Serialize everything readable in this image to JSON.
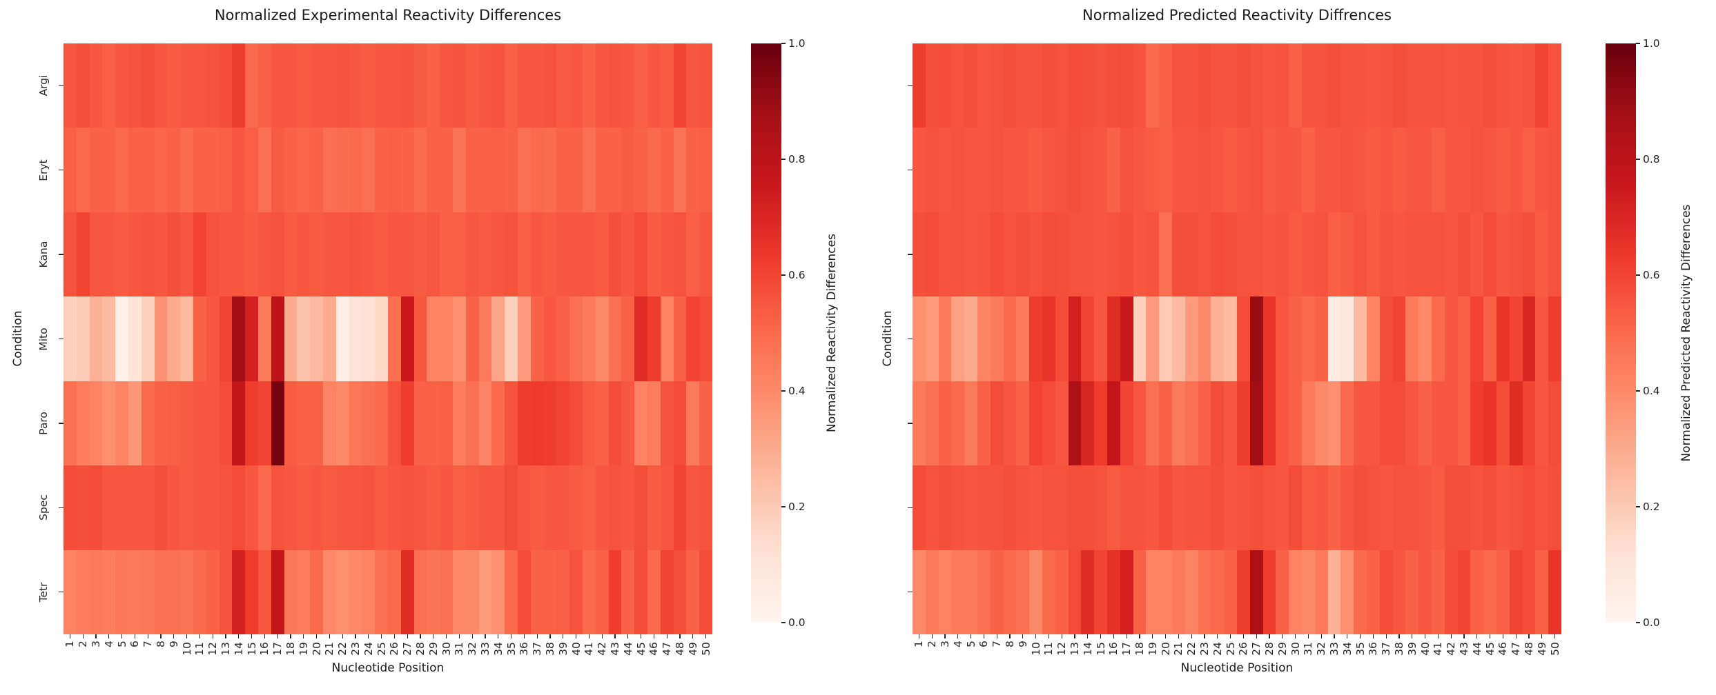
{
  "figure": {
    "background": "#ffffff",
    "text_color": "#1a1a1a"
  },
  "colors": {
    "reds_colormap_stops": [
      "#fff5f0",
      "#fee0d2",
      "#fcbba1",
      "#fc9272",
      "#fb6a4a",
      "#ef3b2c",
      "#cb181d",
      "#a50f15",
      "#67000d"
    ]
  },
  "chart_data": [
    {
      "type": "heatmap",
      "title": "Normalized Experimental Reactivity Differences",
      "xlabel": "Nucleotide Position",
      "ylabel": "Condition",
      "colorbar_label": "Normalized Reactivity Differences",
      "colorbar_ticks": [
        "1.0",
        "0.8",
        "0.6",
        "0.4",
        "0.2",
        "0.0"
      ],
      "vmin": 0,
      "vmax": 1,
      "colormap": "Reds",
      "y_ticklabels": [
        "Argi",
        "Eryt",
        "Kana",
        "Mito",
        "Paro",
        "Spec",
        "Tetr"
      ],
      "show_y_ticklabels": true,
      "x_ticklabels": [
        "1",
        "2",
        "3",
        "4",
        "5",
        "6",
        "7",
        "8",
        "9",
        "10",
        "11",
        "12",
        "13",
        "14",
        "15",
        "16",
        "17",
        "18",
        "19",
        "20",
        "21",
        "22",
        "23",
        "24",
        "25",
        "26",
        "27",
        "28",
        "29",
        "30",
        "31",
        "32",
        "33",
        "34",
        "35",
        "36",
        "37",
        "38",
        "39",
        "40",
        "41",
        "42",
        "43",
        "44",
        "45",
        "46",
        "47",
        "48",
        "49",
        "50"
      ],
      "values": [
        [
          0.55,
          0.57,
          0.55,
          0.53,
          0.55,
          0.56,
          0.57,
          0.55,
          0.54,
          0.55,
          0.55,
          0.56,
          0.58,
          0.62,
          0.5,
          0.53,
          0.55,
          0.55,
          0.54,
          0.55,
          0.55,
          0.56,
          0.55,
          0.54,
          0.55,
          0.55,
          0.56,
          0.54,
          0.52,
          0.55,
          0.56,
          0.54,
          0.55,
          0.56,
          0.53,
          0.55,
          0.55,
          0.56,
          0.54,
          0.55,
          0.52,
          0.55,
          0.56,
          0.55,
          0.53,
          0.55,
          0.54,
          0.6,
          0.55,
          0.56
        ],
        [
          0.53,
          0.5,
          0.52,
          0.52,
          0.5,
          0.52,
          0.52,
          0.51,
          0.52,
          0.49,
          0.52,
          0.52,
          0.53,
          0.55,
          0.53,
          0.48,
          0.54,
          0.52,
          0.51,
          0.52,
          0.48,
          0.49,
          0.5,
          0.48,
          0.52,
          0.53,
          0.52,
          0.49,
          0.52,
          0.52,
          0.47,
          0.52,
          0.52,
          0.53,
          0.52,
          0.48,
          0.5,
          0.49,
          0.52,
          0.52,
          0.48,
          0.52,
          0.52,
          0.54,
          0.52,
          0.5,
          0.52,
          0.47,
          0.52,
          0.53
        ],
        [
          0.56,
          0.6,
          0.55,
          0.55,
          0.54,
          0.55,
          0.56,
          0.55,
          0.57,
          0.55,
          0.6,
          0.56,
          0.55,
          0.55,
          0.54,
          0.55,
          0.56,
          0.54,
          0.55,
          0.54,
          0.55,
          0.55,
          0.56,
          0.55,
          0.54,
          0.55,
          0.55,
          0.54,
          0.55,
          0.52,
          0.53,
          0.55,
          0.54,
          0.55,
          0.56,
          0.53,
          0.55,
          0.54,
          0.55,
          0.55,
          0.55,
          0.54,
          0.57,
          0.55,
          0.58,
          0.54,
          0.55,
          0.56,
          0.53,
          0.55
        ],
        [
          0.18,
          0.2,
          0.28,
          0.25,
          0.03,
          0.1,
          0.18,
          0.38,
          0.3,
          0.25,
          0.52,
          0.55,
          0.6,
          0.88,
          0.72,
          0.45,
          0.8,
          0.3,
          0.22,
          0.25,
          0.3,
          0.04,
          0.1,
          0.12,
          0.15,
          0.48,
          0.75,
          0.55,
          0.42,
          0.42,
          0.38,
          0.52,
          0.45,
          0.32,
          0.18,
          0.35,
          0.52,
          0.55,
          0.53,
          0.48,
          0.45,
          0.4,
          0.48,
          0.52,
          0.68,
          0.62,
          0.42,
          0.52,
          0.6,
          0.58
        ],
        [
          0.48,
          0.44,
          0.42,
          0.38,
          0.42,
          0.36,
          0.5,
          0.52,
          0.53,
          0.54,
          0.55,
          0.55,
          0.58,
          0.78,
          0.62,
          0.6,
          0.97,
          0.54,
          0.52,
          0.52,
          0.42,
          0.4,
          0.46,
          0.48,
          0.5,
          0.56,
          0.62,
          0.52,
          0.52,
          0.53,
          0.44,
          0.48,
          0.42,
          0.5,
          0.56,
          0.62,
          0.63,
          0.62,
          0.6,
          0.58,
          0.54,
          0.52,
          0.58,
          0.55,
          0.42,
          0.44,
          0.56,
          0.58,
          0.45,
          0.52
        ],
        [
          0.58,
          0.57,
          0.58,
          0.55,
          0.55,
          0.55,
          0.55,
          0.57,
          0.55,
          0.54,
          0.55,
          0.55,
          0.56,
          0.58,
          0.55,
          0.5,
          0.56,
          0.55,
          0.54,
          0.55,
          0.54,
          0.55,
          0.55,
          0.56,
          0.54,
          0.55,
          0.56,
          0.55,
          0.54,
          0.55,
          0.53,
          0.54,
          0.55,
          0.55,
          0.58,
          0.55,
          0.54,
          0.55,
          0.55,
          0.54,
          0.53,
          0.55,
          0.56,
          0.55,
          0.57,
          0.54,
          0.55,
          0.6,
          0.55,
          0.56
        ],
        [
          0.42,
          0.44,
          0.45,
          0.44,
          0.46,
          0.45,
          0.46,
          0.48,
          0.48,
          0.47,
          0.5,
          0.52,
          0.56,
          0.72,
          0.62,
          0.55,
          0.78,
          0.46,
          0.44,
          0.5,
          0.4,
          0.38,
          0.4,
          0.42,
          0.48,
          0.5,
          0.68,
          0.48,
          0.47,
          0.48,
          0.4,
          0.4,
          0.35,
          0.38,
          0.5,
          0.58,
          0.52,
          0.52,
          0.53,
          0.56,
          0.5,
          0.52,
          0.62,
          0.52,
          0.58,
          0.5,
          0.6,
          0.57,
          0.52,
          0.58
        ]
      ]
    },
    {
      "type": "heatmap",
      "title": "Normalized Predicted Reactivity Diffrences",
      "xlabel": "Nucleotide Position",
      "ylabel": "Condition",
      "colorbar_label": "Normalized Predicted Reactivity Differences",
      "colorbar_ticks": [
        "1.0",
        "0.8",
        "0.6",
        "0.4",
        "0.2",
        "0.0"
      ],
      "vmin": 0,
      "vmax": 1,
      "colormap": "Reds",
      "y_ticklabels": [],
      "show_y_ticklabels": false,
      "x_ticklabels": [
        "1",
        "2",
        "3",
        "4",
        "5",
        "6",
        "7",
        "8",
        "9",
        "10",
        "11",
        "12",
        "13",
        "14",
        "15",
        "16",
        "17",
        "18",
        "19",
        "20",
        "21",
        "22",
        "23",
        "24",
        "25",
        "26",
        "27",
        "28",
        "29",
        "30",
        "31",
        "32",
        "33",
        "34",
        "35",
        "36",
        "37",
        "38",
        "39",
        "40",
        "41",
        "42",
        "43",
        "44",
        "45",
        "46",
        "47",
        "48",
        "49",
        "50"
      ],
      "values": [
        [
          0.62,
          0.57,
          0.58,
          0.56,
          0.57,
          0.55,
          0.56,
          0.57,
          0.56,
          0.56,
          0.57,
          0.56,
          0.58,
          0.57,
          0.56,
          0.57,
          0.58,
          0.56,
          0.5,
          0.52,
          0.56,
          0.56,
          0.57,
          0.56,
          0.56,
          0.57,
          0.56,
          0.55,
          0.56,
          0.53,
          0.56,
          0.56,
          0.57,
          0.56,
          0.56,
          0.55,
          0.56,
          0.57,
          0.56,
          0.56,
          0.56,
          0.55,
          0.56,
          0.56,
          0.57,
          0.56,
          0.55,
          0.56,
          0.6,
          0.56
        ],
        [
          0.55,
          0.56,
          0.55,
          0.56,
          0.55,
          0.55,
          0.56,
          0.55,
          0.55,
          0.54,
          0.55,
          0.56,
          0.57,
          0.56,
          0.55,
          0.52,
          0.56,
          0.55,
          0.54,
          0.53,
          0.55,
          0.55,
          0.56,
          0.55,
          0.54,
          0.55,
          0.56,
          0.54,
          0.55,
          0.55,
          0.52,
          0.55,
          0.55,
          0.56,
          0.55,
          0.54,
          0.55,
          0.54,
          0.55,
          0.55,
          0.53,
          0.55,
          0.55,
          0.56,
          0.55,
          0.54,
          0.55,
          0.53,
          0.55,
          0.56
        ],
        [
          0.57,
          0.58,
          0.56,
          0.56,
          0.55,
          0.56,
          0.58,
          0.56,
          0.57,
          0.56,
          0.58,
          0.57,
          0.56,
          0.56,
          0.55,
          0.56,
          0.57,
          0.55,
          0.56,
          0.48,
          0.57,
          0.57,
          0.56,
          0.58,
          0.57,
          0.56,
          0.56,
          0.55,
          0.56,
          0.54,
          0.55,
          0.56,
          0.53,
          0.54,
          0.56,
          0.54,
          0.56,
          0.55,
          0.56,
          0.56,
          0.56,
          0.55,
          0.57,
          0.55,
          0.58,
          0.55,
          0.56,
          0.57,
          0.54,
          0.56
        ],
        [
          0.38,
          0.35,
          0.45,
          0.33,
          0.3,
          0.42,
          0.45,
          0.5,
          0.45,
          0.62,
          0.65,
          0.58,
          0.72,
          0.6,
          0.55,
          0.68,
          0.75,
          0.18,
          0.35,
          0.2,
          0.25,
          0.35,
          0.4,
          0.28,
          0.25,
          0.58,
          0.9,
          0.65,
          0.55,
          0.52,
          0.5,
          0.52,
          0.06,
          0.08,
          0.25,
          0.42,
          0.58,
          0.6,
          0.45,
          0.4,
          0.5,
          0.55,
          0.52,
          0.6,
          0.52,
          0.65,
          0.6,
          0.7,
          0.55,
          0.62
        ],
        [
          0.45,
          0.48,
          0.52,
          0.5,
          0.45,
          0.52,
          0.58,
          0.55,
          0.52,
          0.6,
          0.58,
          0.55,
          0.85,
          0.7,
          0.62,
          0.78,
          0.6,
          0.55,
          0.48,
          0.52,
          0.45,
          0.48,
          0.52,
          0.58,
          0.55,
          0.62,
          0.88,
          0.65,
          0.55,
          0.52,
          0.45,
          0.4,
          0.38,
          0.5,
          0.55,
          0.55,
          0.58,
          0.58,
          0.55,
          0.52,
          0.55,
          0.55,
          0.52,
          0.62,
          0.65,
          0.58,
          0.68,
          0.6,
          0.55,
          0.58
        ],
        [
          0.58,
          0.56,
          0.57,
          0.56,
          0.55,
          0.56,
          0.56,
          0.57,
          0.56,
          0.55,
          0.56,
          0.56,
          0.57,
          0.57,
          0.56,
          0.54,
          0.56,
          0.56,
          0.55,
          0.58,
          0.55,
          0.56,
          0.56,
          0.57,
          0.55,
          0.56,
          0.57,
          0.56,
          0.55,
          0.58,
          0.54,
          0.55,
          0.52,
          0.55,
          0.57,
          0.56,
          0.55,
          0.56,
          0.56,
          0.55,
          0.54,
          0.57,
          0.57,
          0.56,
          0.57,
          0.55,
          0.56,
          0.58,
          0.56,
          0.57
        ],
        [
          0.4,
          0.45,
          0.42,
          0.45,
          0.45,
          0.48,
          0.52,
          0.5,
          0.48,
          0.4,
          0.5,
          0.52,
          0.58,
          0.68,
          0.6,
          0.66,
          0.72,
          0.52,
          0.42,
          0.42,
          0.45,
          0.42,
          0.48,
          0.5,
          0.52,
          0.62,
          0.85,
          0.62,
          0.52,
          0.42,
          0.4,
          0.45,
          0.28,
          0.38,
          0.5,
          0.52,
          0.58,
          0.55,
          0.52,
          0.55,
          0.52,
          0.58,
          0.6,
          0.52,
          0.5,
          0.52,
          0.6,
          0.58,
          0.52,
          0.65
        ]
      ]
    }
  ]
}
